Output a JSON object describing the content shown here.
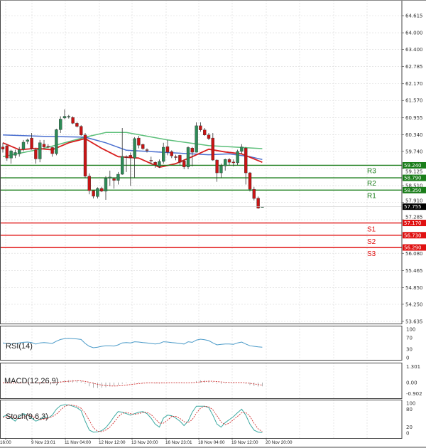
{
  "colors": {
    "up": "#2e8b57",
    "down": "#c81414",
    "resistance": "#1a7d1a",
    "support": "#e01010",
    "current": "#000000",
    "ma_blue": "#4a6fd0",
    "ma_green": "#5cbf7a",
    "ma_red": "#d81e1e",
    "rsi": "#4a9ac8",
    "stoch_main": "#3aa8a0",
    "stoch_signal": "#d03030",
    "macd_signal": "#d03030",
    "macd_hist": "#999999"
  },
  "chart_data": [
    {
      "type": "candlestick",
      "price_axis_ticks": [
        "64.615",
        "64.000",
        "63.400",
        "62.785",
        "62.170",
        "61.570",
        "60.955",
        "60.340",
        "59.740",
        "59.125",
        "58.510",
        "57.910",
        "57.285",
        "56.080",
        "55.465",
        "54.850",
        "54.250",
        "53.635"
      ],
      "ylim": [
        53.56,
        65.18
      ],
      "time_labels": [
        "16:00",
        "9 Nov 23:01",
        "11 Nov 04:00",
        "12 Nov 12:00",
        "13 Nov 20:00",
        "16 Nov 23:01",
        "18 Nov 04:00",
        "19 Nov 12:00",
        "20 Nov 20:00"
      ],
      "candles_ohlc": [
        [
          59.9,
          60.05,
          59.7,
          59.82
        ],
        [
          59.94,
          60.0,
          59.4,
          59.5
        ],
        [
          59.5,
          59.8,
          59.3,
          59.76
        ],
        [
          59.6,
          59.8,
          59.5,
          59.7
        ],
        [
          59.65,
          59.9,
          59.55,
          59.8
        ],
        [
          59.82,
          60.15,
          59.75,
          60.07
        ],
        [
          60.1,
          60.2,
          60.0,
          60.15
        ],
        [
          60.22,
          60.4,
          59.8,
          59.84
        ],
        [
          59.8,
          59.85,
          59.3,
          59.47
        ],
        [
          59.47,
          60.15,
          59.35,
          60.05
        ],
        [
          60.0,
          60.15,
          59.85,
          59.9
        ],
        [
          59.92,
          60.0,
          59.85,
          59.9
        ],
        [
          59.88,
          59.9,
          59.55,
          59.66
        ],
        [
          59.66,
          60.55,
          59.6,
          60.52
        ],
        [
          60.52,
          61.0,
          60.4,
          60.9
        ],
        [
          60.94,
          61.25,
          60.9,
          61.0
        ],
        [
          60.98,
          61.05,
          60.92,
          61.0
        ],
        [
          60.96,
          61.0,
          60.72,
          60.75
        ],
        [
          60.75,
          60.8,
          60.6,
          60.64
        ],
        [
          60.64,
          60.68,
          60.3,
          60.33
        ],
        [
          60.33,
          60.4,
          58.8,
          58.85
        ],
        [
          58.85,
          58.95,
          58.2,
          58.33
        ],
        [
          58.33,
          58.35,
          58.05,
          58.13
        ],
        [
          58.12,
          58.45,
          58.05,
          58.41
        ],
        [
          58.41,
          58.47,
          58.28,
          58.31
        ],
        [
          58.31,
          58.85,
          58.0,
          58.78
        ],
        [
          58.78,
          59.05,
          58.5,
          58.82
        ],
        [
          58.76,
          58.8,
          58.4,
          58.7
        ],
        [
          58.7,
          59.0,
          58.55,
          58.92
        ],
        [
          58.92,
          60.58,
          58.9,
          59.56
        ],
        [
          59.55,
          59.6,
          59.0,
          59.52
        ],
        [
          59.6,
          59.7,
          58.5,
          59.5
        ],
        [
          59.5,
          60.25,
          58.8,
          60.2
        ],
        [
          60.22,
          60.3,
          59.85,
          59.96
        ],
        [
          59.99,
          60.02,
          59.8,
          59.84
        ],
        [
          59.8,
          59.85,
          59.7,
          59.78
        ],
        [
          59.42,
          59.55,
          59.28,
          59.4
        ],
        [
          59.35,
          59.38,
          59.15,
          59.25
        ],
        [
          59.2,
          59.45,
          59.15,
          59.38
        ],
        [
          59.38,
          60.05,
          59.3,
          59.89
        ],
        [
          59.91,
          60.15,
          59.6,
          59.71
        ],
        [
          59.73,
          59.78,
          59.5,
          59.58
        ],
        [
          59.55,
          59.62,
          59.42,
          59.52
        ],
        [
          59.6,
          59.62,
          59.25,
          59.35
        ],
        [
          59.4,
          59.45,
          59.1,
          59.18
        ],
        [
          59.18,
          59.92,
          59.1,
          59.88
        ],
        [
          59.86,
          59.9,
          59.2,
          59.71
        ],
        [
          59.71,
          60.78,
          59.7,
          60.66
        ],
        [
          60.66,
          60.78,
          60.45,
          60.51
        ],
        [
          60.51,
          60.58,
          60.3,
          60.33
        ],
        [
          60.33,
          60.4,
          60.15,
          60.2
        ],
        [
          60.22,
          60.4,
          59.4,
          59.43
        ],
        [
          59.43,
          59.45,
          58.65,
          58.97
        ],
        [
          58.97,
          59.3,
          58.8,
          59.22
        ],
        [
          59.22,
          59.48,
          59.05,
          59.45
        ],
        [
          59.45,
          59.5,
          59.25,
          59.35
        ],
        [
          59.36,
          59.45,
          59.2,
          59.33
        ],
        [
          59.33,
          59.8,
          59.25,
          59.74
        ],
        [
          59.74,
          60.0,
          59.65,
          59.9
        ],
        [
          59.86,
          59.9,
          58.55,
          58.97
        ],
        [
          58.97,
          59.0,
          58.3,
          58.38
        ],
        [
          58.38,
          58.47,
          57.98,
          58.05
        ],
        [
          58.06,
          58.12,
          57.68,
          57.7
        ],
        [
          57.73,
          57.76,
          57.72,
          57.755
        ]
      ],
      "moving_averages": {
        "blue": [
          [
            0,
            60.33
          ],
          [
            10,
            60.28
          ],
          [
            20,
            60.25
          ],
          [
            25,
            60.05
          ],
          [
            30,
            59.78
          ],
          [
            40,
            59.7
          ],
          [
            50,
            59.62
          ],
          [
            55,
            59.65
          ],
          [
            60,
            59.55
          ],
          [
            63,
            59.45
          ]
        ],
        "green": [
          [
            0,
            59.55
          ],
          [
            10,
            59.85
          ],
          [
            20,
            60.25
          ],
          [
            25,
            60.42
          ],
          [
            30,
            60.42
          ],
          [
            40,
            60.15
          ],
          [
            50,
            59.95
          ],
          [
            58,
            59.88
          ],
          [
            63,
            59.84
          ]
        ],
        "red": [
          [
            0,
            60.05
          ],
          [
            4,
            59.8
          ],
          [
            8,
            59.85
          ],
          [
            12,
            59.8
          ],
          [
            16,
            60.05
          ],
          [
            20,
            60.2
          ],
          [
            24,
            59.85
          ],
          [
            28,
            59.55
          ],
          [
            33,
            59.5
          ],
          [
            38,
            59.17
          ],
          [
            42,
            59.3
          ],
          [
            46,
            59.55
          ],
          [
            50,
            59.82
          ],
          [
            54,
            59.72
          ],
          [
            58,
            59.65
          ],
          [
            63,
            59.35
          ]
        ]
      },
      "levels": [
        {
          "label": "R3",
          "value": "59.240",
          "kind": "resistance"
        },
        {
          "label": "R2",
          "value": "58.790",
          "kind": "resistance"
        },
        {
          "label": "R1",
          "value": "58.350",
          "kind": "resistance"
        },
        {
          "label": "S1",
          "value": "57.170",
          "kind": "support"
        },
        {
          "label": "S2",
          "value": "56.730",
          "kind": "support"
        },
        {
          "label": "S3",
          "value": "56.290",
          "kind": "support"
        }
      ],
      "current_price": "57.755"
    },
    {
      "type": "line",
      "title": "RSI(14)",
      "ticks": [
        "100",
        "70",
        "30",
        "0"
      ],
      "ylim": [
        0,
        100
      ],
      "values": [
        52,
        50,
        48,
        50,
        52,
        54,
        55,
        53,
        48,
        52,
        53,
        52,
        50,
        58,
        64,
        67,
        68,
        67,
        66,
        64,
        50,
        40,
        35,
        37,
        40,
        42,
        42,
        41,
        45,
        52,
        53,
        52,
        56,
        55,
        53,
        52,
        50,
        48,
        50,
        56,
        55,
        53,
        52,
        50,
        48,
        56,
        54,
        62,
        65,
        63,
        60,
        52,
        45,
        47,
        48,
        48,
        47,
        52,
        55,
        48,
        42,
        40,
        38,
        37
      ]
    },
    {
      "type": "bar+line",
      "title": "MACD(12,26,9)",
      "ticks": [
        "1.301",
        "0.00",
        "-0.902"
      ],
      "ylim": [
        -0.902,
        1.301
      ],
      "histogram": [
        0,
        -0.05,
        -0.08,
        -0.06,
        -0.03,
        0,
        0.02,
        0,
        -0.05,
        -0.03,
        0,
        0,
        -0.02,
        0.05,
        0.12,
        0.18,
        0.2,
        0.2,
        0.18,
        0.15,
        -0.1,
        -0.3,
        -0.42,
        -0.45,
        -0.42,
        -0.38,
        -0.32,
        -0.28,
        -0.22,
        -0.1,
        -0.05,
        -0.03,
        0.03,
        0.04,
        0.03,
        0.01,
        -0.03,
        -0.07,
        -0.08,
        -0.02,
        0,
        0,
        -0.02,
        -0.04,
        -0.06,
        0,
        0.03,
        0.12,
        0.18,
        0.18,
        0.16,
        0.05,
        -0.08,
        -0.1,
        -0.06,
        -0.04,
        -0.05,
        0,
        0.02,
        -0.1,
        -0.2,
        -0.28,
        -0.32,
        -0.3
      ],
      "signal": [
        -0.02,
        -0.03,
        -0.04,
        -0.04,
        -0.04,
        -0.03,
        -0.02,
        -0.02,
        -0.02,
        -0.02,
        -0.01,
        -0.01,
        -0.01,
        0.01,
        0.04,
        0.08,
        0.11,
        0.13,
        0.14,
        0.14,
        0.1,
        0.03,
        -0.06,
        -0.14,
        -0.2,
        -0.24,
        -0.27,
        -0.28,
        -0.27,
        -0.24,
        -0.2,
        -0.16,
        -0.12,
        -0.08,
        -0.05,
        -0.03,
        -0.02,
        -0.03,
        -0.03,
        -0.03,
        -0.02,
        -0.01,
        -0.01,
        -0.01,
        -0.02,
        -0.02,
        -0.01,
        0.02,
        0.06,
        0.09,
        0.11,
        0.11,
        0.08,
        0.05,
        0.03,
        0.01,
        0,
        0,
        0,
        -0.02,
        -0.06,
        -0.11,
        -0.16,
        -0.2
      ]
    },
    {
      "type": "line",
      "title": "Stoch(9,6,3)",
      "ticks": [
        "100",
        "80",
        "20",
        "0"
      ],
      "ylim": [
        0,
        100
      ],
      "main": [
        55,
        60,
        50,
        40,
        55,
        65,
        60,
        50,
        40,
        45,
        55,
        50,
        60,
        80,
        92,
        95,
        94,
        90,
        85,
        75,
        40,
        10,
        3,
        4,
        8,
        18,
        35,
        55,
        72,
        70,
        65,
        60,
        65,
        70,
        72,
        65,
        50,
        30,
        20,
        50,
        60,
        58,
        50,
        40,
        25,
        40,
        70,
        90,
        90,
        90,
        85,
        60,
        30,
        20,
        35,
        45,
        55,
        68,
        80,
        60,
        30,
        10,
        3,
        2
      ],
      "signal": [
        52,
        55,
        55,
        50,
        48,
        53,
        60,
        58,
        50,
        45,
        47,
        50,
        55,
        63,
        77,
        89,
        94,
        93,
        90,
        83,
        67,
        42,
        18,
        6,
        5,
        10,
        20,
        36,
        54,
        66,
        69,
        65,
        63,
        65,
        69,
        69,
        62,
        48,
        33,
        33,
        43,
        56,
        56,
        49,
        38,
        35,
        45,
        67,
        83,
        90,
        88,
        78,
        58,
        37,
        28,
        33,
        45,
        56,
        68,
        69,
        56,
        33,
        14,
        5
      ]
    }
  ]
}
